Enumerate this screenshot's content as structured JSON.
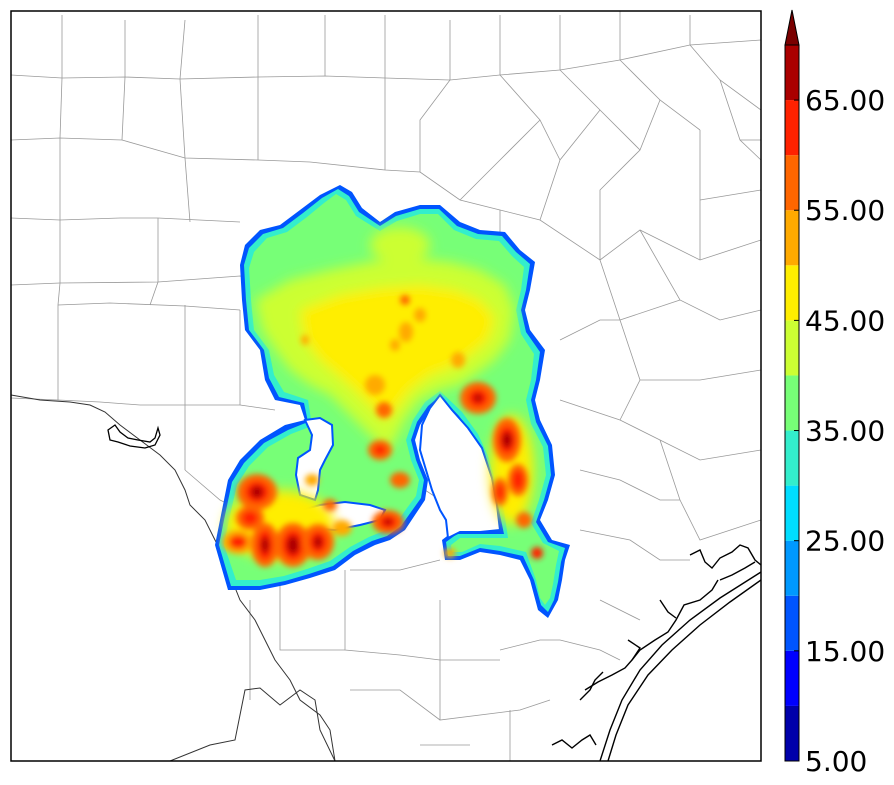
{
  "colorbar": {
    "levels": [
      5,
      10,
      15,
      20,
      25,
      30,
      35,
      40,
      45,
      50,
      55,
      60,
      65,
      70
    ],
    "colors": [
      "#0000aa",
      "#0000ff",
      "#0055ff",
      "#0099ff",
      "#00ddff",
      "#33eecc",
      "#77ff77",
      "#ccff33",
      "#ffee00",
      "#ffaa00",
      "#ff6600",
      "#ff2200",
      "#aa0000"
    ],
    "extend_color": "#7a0000",
    "tick_labels": [
      "5.00",
      "15.00",
      "25.00",
      "35.00",
      "45.00",
      "55.00",
      "65.00"
    ],
    "tick_values": [
      5,
      15,
      25,
      35,
      45,
      55,
      65
    ]
  },
  "map": {
    "features": [
      "county boundaries",
      "state boundary",
      "coastline",
      "reflectivity field"
    ],
    "colors": {
      "county_line": "#888888",
      "coast_line": "#000000",
      "frame": "#000000"
    }
  }
}
